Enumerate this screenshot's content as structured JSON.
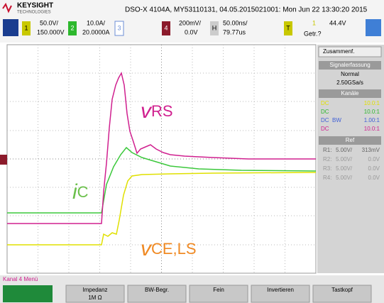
{
  "header": {
    "brand": "KEYSIGHT",
    "brand_sub": "TECHNOLOGIES",
    "title": "DSO-X 4104A, MY53110131, 04.05.2015021001: Mon Jun 22 13:30:20 2015"
  },
  "channels": [
    {
      "id": "1",
      "scale": "50.0V/",
      "offset": "150.000V"
    },
    {
      "id": "2",
      "scale": "10.0A/",
      "offset": "20.0000A"
    },
    {
      "id": "3"
    },
    {
      "id": "4",
      "scale": "200mV/",
      "offset": "0.0V"
    }
  ],
  "horizontal": {
    "id": "H",
    "scale": "50.00ns/",
    "delay": "79.77us"
  },
  "trigger": {
    "id": "T",
    "source": "1",
    "level": "44.4V",
    "status": "Getr.?"
  },
  "annotations": {
    "vrs": {
      "main": "v",
      "sub": "RS"
    },
    "ic": {
      "main": "i",
      "sub": "C"
    },
    "vce": {
      "main": "v",
      "sub": "CE,LS"
    }
  },
  "panel": {
    "tab": "Zusammenf.",
    "acq_title": "Signalerfassung",
    "mode": "Normal",
    "rate": "2.50GSa/s",
    "channels_title": "Kanäle",
    "rows": [
      {
        "coupling": "DC",
        "extra": "",
        "ratio": "10.0:1"
      },
      {
        "coupling": "DC",
        "extra": "",
        "ratio": "10.0:1"
      },
      {
        "coupling": "DC",
        "extra": "BW",
        "ratio": "1.00:1"
      },
      {
        "coupling": "DC",
        "extra": "",
        "ratio": "10.0:1"
      }
    ],
    "ref_title": "Ref",
    "refs": [
      {
        "name": "R1:",
        "scale": "5.00V/",
        "offset": "313mV"
      },
      {
        "name": "R2:",
        "scale": "5.00V/",
        "offset": "0.0V"
      },
      {
        "name": "R3:",
        "scale": "5.00V/",
        "offset": "0.0V"
      },
      {
        "name": "R4:",
        "scale": "5.00V/",
        "offset": "0.0V"
      }
    ]
  },
  "menu": {
    "title": "Kanal 4 Menü",
    "buttons": [
      {
        "label": "Impedanz",
        "value": "1M Ω"
      },
      {
        "label": "BW-Begr."
      },
      {
        "label": "Fein"
      },
      {
        "label": "Invertieren"
      },
      {
        "label": "Tastkopf"
      }
    ]
  }
}
